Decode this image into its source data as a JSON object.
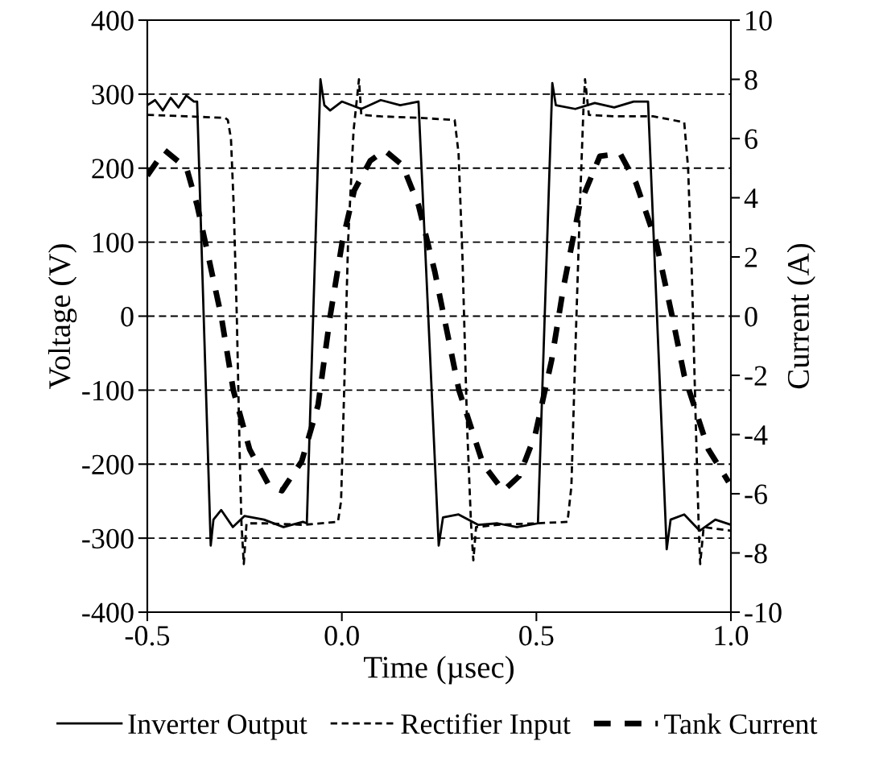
{
  "chart_data": {
    "type": "line",
    "xlabel": "Time (µsec)",
    "ylabel": "Voltage (V)",
    "y2label": "Current (A)",
    "xlim": [
      -0.5,
      1.0
    ],
    "xticks": [
      {
        "value": -0.5,
        "label": "-0.5"
      },
      {
        "value": 0.0,
        "label": "0.0"
      },
      {
        "value": 0.5,
        "label": "0.5"
      },
      {
        "value": 1.0,
        "label": "1.0"
      }
    ],
    "ylim": [
      -400,
      400
    ],
    "yticks": [
      {
        "value": -400,
        "label": "-400"
      },
      {
        "value": -300,
        "label": "-300"
      },
      {
        "value": -200,
        "label": "-200"
      },
      {
        "value": -100,
        "label": "-100"
      },
      0,
      100,
      200,
      300,
      400
    ],
    "y2lim": [
      -10,
      10
    ],
    "y2ticks": [
      {
        "value": -10,
        "label": "-10"
      },
      {
        "value": -8,
        "label": "-8"
      },
      {
        "value": -6,
        "label": "-6"
      },
      {
        "value": -4,
        "label": "-4"
      },
      {
        "value": -2,
        "label": "-2"
      },
      0,
      2,
      4,
      6,
      8,
      10
    ],
    "grid": "y",
    "legend": "bottom",
    "series": [
      {
        "name": "Inverter Output",
        "color": "#000000",
        "line_style": "solid",
        "x": [
          -0.5,
          -0.48,
          -0.46,
          -0.44,
          -0.42,
          -0.4,
          -0.38,
          -0.372,
          -0.337,
          -0.33,
          -0.31,
          -0.28,
          -0.25,
          -0.2,
          -0.15,
          -0.1,
          -0.09,
          -0.055,
          -0.045,
          -0.03,
          0.0,
          0.05,
          0.1,
          0.15,
          0.197,
          0.249,
          0.26,
          0.3,
          0.35,
          0.4,
          0.45,
          0.504,
          0.541,
          0.55,
          0.6,
          0.65,
          0.7,
          0.75,
          0.787,
          0.835,
          0.845,
          0.88,
          0.92,
          0.96,
          1.0
        ],
        "values": [
          285,
          292,
          278,
          295,
          282,
          298,
          290,
          290,
          -310,
          -275,
          -262,
          -285,
          -270,
          -275,
          -285,
          -278,
          -280,
          320,
          285,
          278,
          290,
          280,
          292,
          285,
          290,
          -310,
          -272,
          -268,
          -282,
          -280,
          -285,
          -280,
          315,
          285,
          280,
          288,
          282,
          290,
          290,
          -315,
          -275,
          -268,
          -290,
          -275,
          -282
        ]
      },
      {
        "name": "Rectifier Input",
        "color": "#000000",
        "line_style": "dashed",
        "x": [
          -0.5,
          -0.4,
          -0.3,
          -0.293,
          -0.285,
          -0.278,
          -0.27,
          -0.262,
          -0.258,
          -0.252,
          -0.245,
          -0.2,
          -0.1,
          -0.01,
          -0.002,
          0.006,
          0.016,
          0.03,
          0.044,
          0.05,
          0.1,
          0.2,
          0.29,
          0.3,
          0.31,
          0.322,
          0.332,
          0.338,
          0.345,
          0.4,
          0.5,
          0.58,
          0.59,
          0.6,
          0.612,
          0.621,
          0.625,
          0.635,
          0.7,
          0.8,
          0.88,
          0.89,
          0.9,
          0.91,
          0.917,
          0.921,
          0.93,
          1.0
        ],
        "values": [
          272,
          270,
          268,
          265,
          240,
          150,
          0,
          -200,
          -280,
          -335,
          -280,
          -280,
          -282,
          -278,
          -250,
          -100,
          100,
          250,
          320,
          272,
          270,
          268,
          265,
          220,
          80,
          -150,
          -280,
          -330,
          -285,
          -282,
          -280,
          -278,
          -230,
          -50,
          150,
          280,
          320,
          272,
          270,
          270,
          262,
          200,
          50,
          -150,
          -280,
          -335,
          -285,
          -290
        ]
      },
      {
        "name": "Tank Current",
        "color": "#000000",
        "line_style": "dashed",
        "axis": "y2",
        "x": [
          -0.5,
          -0.455,
          -0.399,
          -0.372,
          -0.351,
          -0.31,
          -0.279,
          -0.237,
          -0.186,
          -0.154,
          -0.103,
          -0.061,
          -0.03,
          0.001,
          0.032,
          0.073,
          0.11,
          0.156,
          0.197,
          0.239,
          0.27,
          0.301,
          0.363,
          0.415,
          0.456,
          0.497,
          0.539,
          0.57,
          0.611,
          0.663,
          0.715,
          0.756,
          0.808,
          0.849,
          0.88,
          0.942,
          0.994
        ],
        "values": [
          4.75,
          5.6,
          5.0,
          3.75,
          2.5,
          0,
          -2.5,
          -4.5,
          -5.75,
          -5.9,
          -4.9,
          -3,
          0,
          2.5,
          4.25,
          5.25,
          5.6,
          5.1,
          3.75,
          1.5,
          -0.5,
          -2.5,
          -5,
          -5.9,
          -5.4,
          -4,
          -1.5,
          1,
          3.75,
          5.4,
          5.5,
          4.5,
          2.5,
          0,
          -2,
          -4.5,
          -5.6
        ]
      }
    ]
  }
}
